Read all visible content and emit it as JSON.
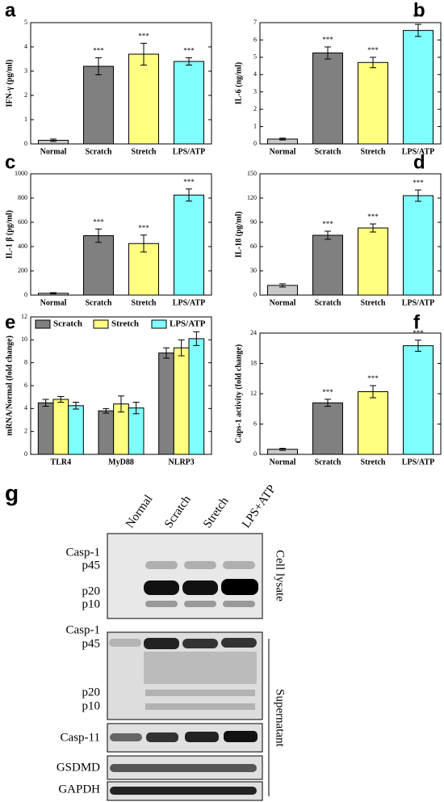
{
  "chart_data": [
    {
      "type": "bar",
      "panel": "a",
      "ylabel": "IFN-γ (pg/ml)",
      "categories": [
        "Normal",
        "Scratch",
        "Stretch",
        "LPS/ATP"
      ],
      "values": [
        0.15,
        3.2,
        3.7,
        3.4
      ],
      "errors": [
        0.05,
        0.35,
        0.45,
        0.15
      ],
      "colors": [
        "#c8c8c8",
        "#808080",
        "#ffff80",
        "#80ffff"
      ],
      "significance": [
        null,
        "***",
        "***",
        "***"
      ],
      "ylim": [
        0,
        5
      ],
      "yticks": [
        0,
        1,
        2,
        3,
        4,
        5
      ]
    },
    {
      "type": "bar",
      "panel": "b",
      "ylabel": "IL-6 (ng/ml)",
      "categories": [
        "Normal",
        "Scratch",
        "Stretch",
        "LPS/ATP"
      ],
      "values": [
        0.28,
        5.25,
        4.7,
        6.55
      ],
      "errors": [
        0.05,
        0.35,
        0.3,
        0.35
      ],
      "colors": [
        "#c8c8c8",
        "#808080",
        "#ffff80",
        "#80ffff"
      ],
      "significance": [
        null,
        "***",
        "***",
        "***"
      ],
      "ylim": [
        0,
        7
      ],
      "yticks": [
        0,
        1,
        2,
        3,
        4,
        5,
        6,
        7
      ]
    },
    {
      "type": "bar",
      "panel": "c",
      "ylabel": "IL-1 β (pg/ml)",
      "categories": [
        "Normal",
        "Scratch",
        "Stretch",
        "LPS/ATP"
      ],
      "values": [
        15,
        490,
        425,
        825
      ],
      "errors": [
        5,
        55,
        70,
        50
      ],
      "colors": [
        "#c8c8c8",
        "#808080",
        "#ffff80",
        "#80ffff"
      ],
      "significance": [
        null,
        "***",
        "***",
        "***"
      ],
      "ylim": [
        0,
        1000
      ],
      "yticks": [
        0,
        200,
        400,
        600,
        800,
        1000
      ]
    },
    {
      "type": "bar",
      "panel": "d",
      "ylabel": "IL-18 (pg/ml)",
      "categories": [
        "Normal",
        "Scratch",
        "Stretch",
        "LPS/ATP"
      ],
      "values": [
        12,
        74,
        83,
        123
      ],
      "errors": [
        2,
        5,
        5,
        7
      ],
      "colors": [
        "#c8c8c8",
        "#808080",
        "#ffff80",
        "#80ffff"
      ],
      "significance": [
        null,
        "***",
        "***",
        "***"
      ],
      "ylim": [
        0,
        150
      ],
      "yticks": [
        0,
        30,
        60,
        90,
        120,
        150
      ]
    },
    {
      "type": "grouped_bar",
      "panel": "e",
      "ylabel": "mRNA/Normal (fold change)",
      "categories": [
        "TLR4",
        "MyD88",
        "NLRP3"
      ],
      "series": [
        {
          "name": "Scratch",
          "color": "#808080",
          "values": [
            4.5,
            3.8,
            8.85
          ],
          "errors": [
            0.3,
            0.2,
            0.45
          ]
        },
        {
          "name": "Stretch",
          "color": "#ffff80",
          "values": [
            4.8,
            4.4,
            9.3
          ],
          "errors": [
            0.25,
            0.7,
            0.7
          ]
        },
        {
          "name": "LPS/ATP",
          "color": "#80ffff",
          "values": [
            4.25,
            4.05,
            10.1
          ],
          "errors": [
            0.3,
            0.5,
            0.6
          ]
        }
      ],
      "legend": "top",
      "ylim": [
        0,
        12
      ],
      "yticks": [
        0,
        2,
        4,
        6,
        8,
        10,
        12
      ]
    },
    {
      "type": "bar",
      "panel": "f",
      "ylabel": "Caps-1 activity (fold change)",
      "categories": [
        "Normal",
        "Scratch",
        "Stretch",
        "LPS/ATP"
      ],
      "values": [
        1,
        10.2,
        12.4,
        21.5
      ],
      "errors": [
        0.2,
        0.7,
        1.2,
        1.1
      ],
      "colors": [
        "#c8c8c8",
        "#808080",
        "#ffff80",
        "#80ffff"
      ],
      "significance": [
        null,
        "***",
        "***",
        "***"
      ],
      "ylim": [
        0,
        24
      ],
      "yticks": [
        0,
        6,
        12,
        18,
        24
      ]
    }
  ],
  "blot": {
    "panel": "g",
    "lanes": [
      "Normal",
      "Scratch",
      "Stretch",
      "LPS+ATP"
    ],
    "blocks": [
      {
        "labels": [
          "Casp-1",
          "p45",
          "p20",
          "p10"
        ]
      },
      {
        "labels": [
          "Casp-1",
          "p45",
          "p20",
          "p10"
        ]
      },
      {
        "labels": [
          "Casp-11"
        ]
      },
      {
        "labels": [
          "GSDMD"
        ]
      },
      {
        "labels": [
          "GAPDH"
        ]
      }
    ],
    "groups": [
      "Cell lysate",
      "Supernatant"
    ]
  }
}
